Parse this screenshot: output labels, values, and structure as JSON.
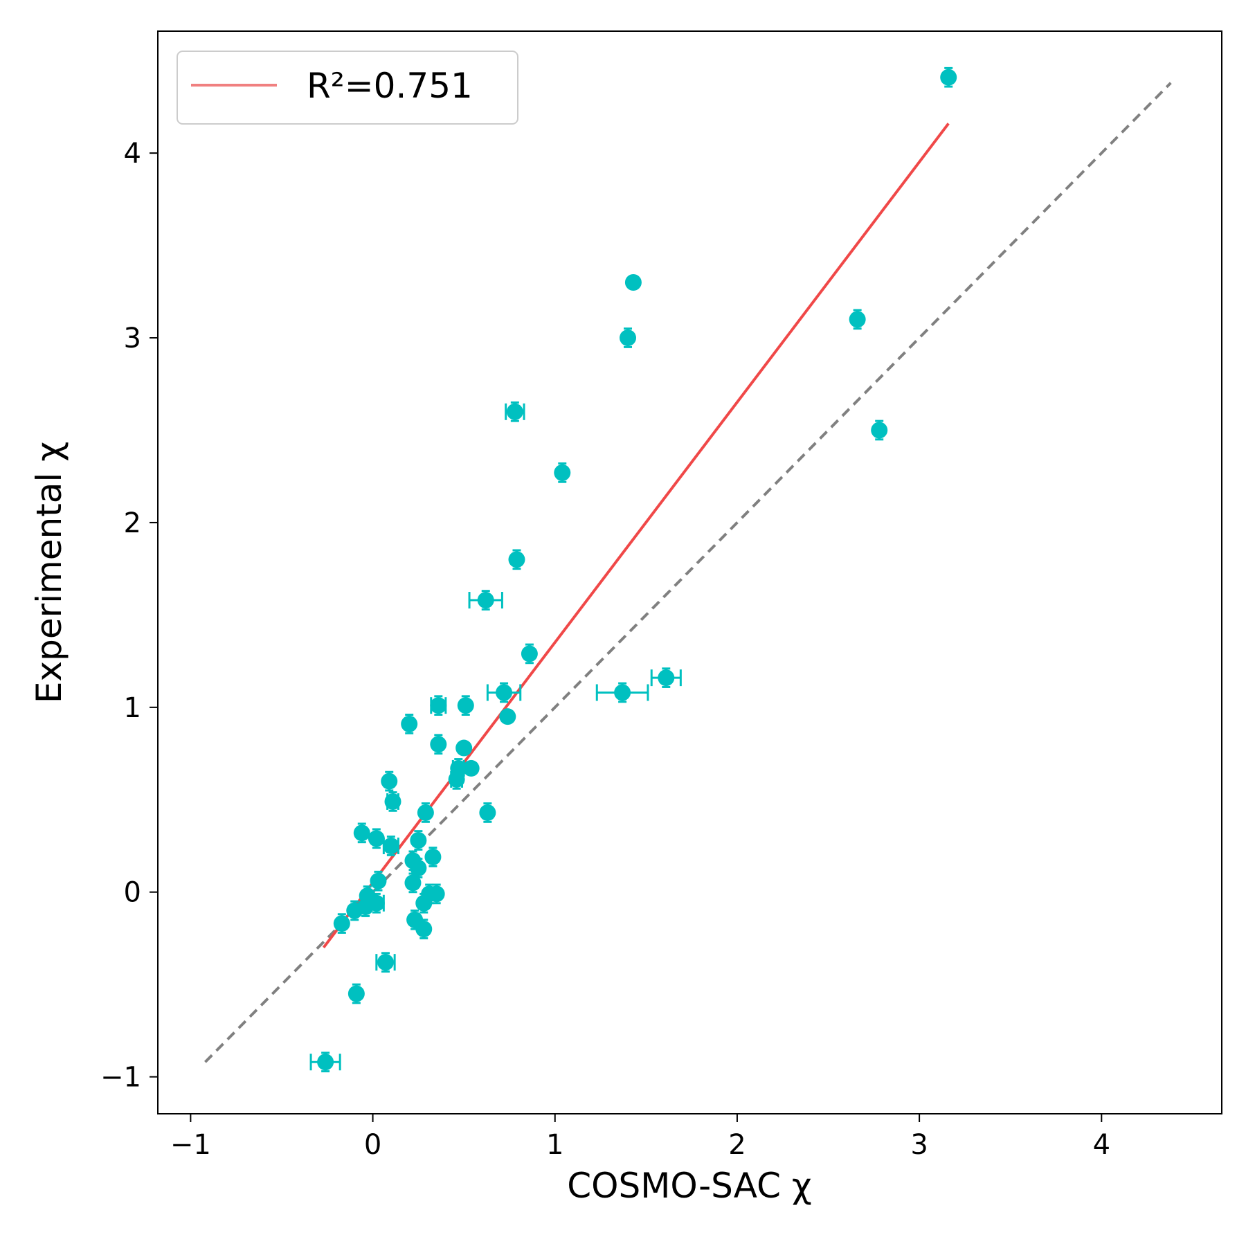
{
  "chart_data": {
    "type": "scatter",
    "xlabel": "COSMO-SAC χ",
    "ylabel": "Experimental χ",
    "xlim": [
      -1.18,
      4.66
    ],
    "ylim": [
      -1.2,
      4.66
    ],
    "x_ticks": [
      -1,
      0,
      1,
      2,
      3,
      4
    ],
    "y_ticks": [
      -1,
      0,
      1,
      2,
      3,
      4
    ],
    "x_tick_labels": [
      "−1",
      "0",
      "1",
      "2",
      "3",
      "4"
    ],
    "y_tick_labels": [
      "−1",
      "0",
      "1",
      "2",
      "3",
      "4"
    ],
    "grid": false,
    "legend": {
      "position": "top-left",
      "entries": [
        {
          "label": "R²=0.751",
          "series": "fit"
        }
      ]
    },
    "colors": {
      "points": "#00c0c0",
      "fit": "#f04848",
      "fit_legend": "#f08080",
      "identity": "#808080"
    },
    "fit_line": {
      "x": [
        -0.27,
        3.16
      ],
      "y": [
        -0.3,
        4.16
      ]
    },
    "identity_line": {
      "x": [
        -0.92,
        4.38
      ],
      "y": [
        -0.92,
        4.38
      ]
    },
    "series": [
      {
        "type": "errorbar-scatter",
        "points": [
          {
            "x": 3.16,
            "y": 4.41,
            "xerr": 0,
            "yerr": 0.05
          },
          {
            "x": 1.43,
            "y": 3.3,
            "xerr": 0,
            "yerr": 0
          },
          {
            "x": 1.4,
            "y": 3.0,
            "xerr": 0,
            "yerr": 0.05
          },
          {
            "x": 2.66,
            "y": 3.1,
            "xerr": 0,
            "yerr": 0.05
          },
          {
            "x": 2.78,
            "y": 2.5,
            "xerr": 0,
            "yerr": 0.05
          },
          {
            "x": 0.78,
            "y": 2.6,
            "xerr": 0.05,
            "yerr": 0.05
          },
          {
            "x": 1.04,
            "y": 2.27,
            "xerr": 0,
            "yerr": 0.05
          },
          {
            "x": 0.79,
            "y": 1.8,
            "xerr": 0,
            "yerr": 0.05
          },
          {
            "x": 0.62,
            "y": 1.58,
            "xerr": 0.09,
            "yerr": 0.05
          },
          {
            "x": 0.86,
            "y": 1.29,
            "xerr": 0,
            "yerr": 0.05
          },
          {
            "x": 0.72,
            "y": 1.08,
            "xerr": 0.09,
            "yerr": 0.05
          },
          {
            "x": 1.37,
            "y": 1.08,
            "xerr": 0.14,
            "yerr": 0.05
          },
          {
            "x": 1.61,
            "y": 1.16,
            "xerr": 0.08,
            "yerr": 0.05
          },
          {
            "x": 0.74,
            "y": 0.95,
            "xerr": 0,
            "yerr": 0
          },
          {
            "x": 0.51,
            "y": 1.01,
            "xerr": 0,
            "yerr": 0.05
          },
          {
            "x": 0.36,
            "y": 1.01,
            "xerr": 0.04,
            "yerr": 0.05
          },
          {
            "x": 0.2,
            "y": 0.91,
            "xerr": 0,
            "yerr": 0.05
          },
          {
            "x": 0.36,
            "y": 0.8,
            "xerr": 0,
            "yerr": 0.05
          },
          {
            "x": 0.5,
            "y": 0.78,
            "xerr": 0,
            "yerr": 0
          },
          {
            "x": 0.54,
            "y": 0.67,
            "xerr": 0,
            "yerr": 0
          },
          {
            "x": 0.47,
            "y": 0.67,
            "xerr": 0.03,
            "yerr": 0.05
          },
          {
            "x": 0.46,
            "y": 0.61,
            "xerr": 0.03,
            "yerr": 0.05
          },
          {
            "x": 0.63,
            "y": 0.43,
            "xerr": 0,
            "yerr": 0.05
          },
          {
            "x": 0.09,
            "y": 0.6,
            "xerr": 0,
            "yerr": 0.05
          },
          {
            "x": 0.11,
            "y": 0.49,
            "xerr": 0.03,
            "yerr": 0.05
          },
          {
            "x": 0.29,
            "y": 0.43,
            "xerr": 0,
            "yerr": 0.05
          },
          {
            "x": -0.06,
            "y": 0.32,
            "xerr": 0,
            "yerr": 0.05
          },
          {
            "x": 0.02,
            "y": 0.29,
            "xerr": 0,
            "yerr": 0.05
          },
          {
            "x": 0.1,
            "y": 0.25,
            "xerr": 0.04,
            "yerr": 0.05
          },
          {
            "x": 0.25,
            "y": 0.28,
            "xerr": 0,
            "yerr": 0.05
          },
          {
            "x": 0.22,
            "y": 0.17,
            "xerr": 0,
            "yerr": 0.05
          },
          {
            "x": 0.33,
            "y": 0.19,
            "xerr": 0,
            "yerr": 0.05
          },
          {
            "x": 0.25,
            "y": 0.13,
            "xerr": 0,
            "yerr": 0.05
          },
          {
            "x": 0.22,
            "y": 0.05,
            "xerr": 0,
            "yerr": 0.05
          },
          {
            "x": 0.03,
            "y": 0.06,
            "xerr": 0,
            "yerr": 0.05
          },
          {
            "x": -0.03,
            "y": -0.02,
            "xerr": 0,
            "yerr": 0.05
          },
          {
            "x": 0.31,
            "y": -0.01,
            "xerr": 0,
            "yerr": 0.05
          },
          {
            "x": 0.35,
            "y": -0.01,
            "xerr": 0,
            "yerr": 0.05
          },
          {
            "x": 0.28,
            "y": -0.06,
            "xerr": 0,
            "yerr": 0.05
          },
          {
            "x": 0.02,
            "y": -0.06,
            "xerr": 0.04,
            "yerr": 0.05
          },
          {
            "x": -0.04,
            "y": -0.08,
            "xerr": 0,
            "yerr": 0.05
          },
          {
            "x": -0.1,
            "y": -0.1,
            "xerr": 0,
            "yerr": 0.05
          },
          {
            "x": 0.23,
            "y": -0.15,
            "xerr": 0,
            "yerr": 0.05
          },
          {
            "x": 0.28,
            "y": -0.2,
            "xerr": 0,
            "yerr": 0.05
          },
          {
            "x": -0.17,
            "y": -0.17,
            "xerr": 0,
            "yerr": 0.05
          },
          {
            "x": 0.07,
            "y": -0.38,
            "xerr": 0.05,
            "yerr": 0.05
          },
          {
            "x": -0.09,
            "y": -0.55,
            "xerr": 0,
            "yerr": 0.05
          },
          {
            "x": -0.26,
            "y": -0.92,
            "xerr": 0.08,
            "yerr": 0.05
          }
        ]
      }
    ]
  }
}
